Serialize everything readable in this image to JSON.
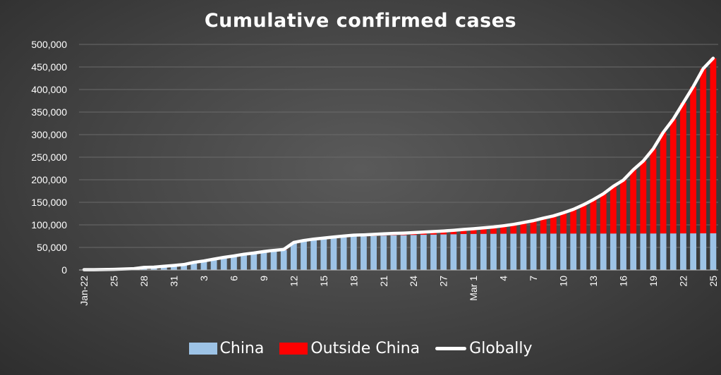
{
  "chart_data": {
    "type": "bar",
    "stacked": true,
    "title": "Cumulative confirmed cases",
    "xlabel": "",
    "ylabel": "",
    "ylim": [
      0,
      500000
    ],
    "y_ticks": [
      "0",
      "50,000",
      "100,000",
      "150,000",
      "200,000",
      "250,000",
      "300,000",
      "350,000",
      "400,000",
      "450,000",
      "500,000"
    ],
    "x_tick_labels": [
      "Jan-22",
      "25",
      "28",
      "31",
      "3",
      "6",
      "9",
      "12",
      "15",
      "18",
      "21",
      "24",
      "27",
      "Mar 1",
      "4",
      "7",
      "10",
      "13",
      "16",
      "19",
      "22",
      "25"
    ],
    "categories": [
      "Jan-22",
      "Jan-23",
      "Jan-24",
      "Jan-25",
      "Jan-26",
      "Jan-27",
      "Jan-28",
      "Jan-29",
      "Jan-30",
      "Jan-31",
      "Feb-1",
      "Feb-2",
      "Feb-3",
      "Feb-4",
      "Feb-5",
      "Feb-6",
      "Feb-7",
      "Feb-8",
      "Feb-9",
      "Feb-10",
      "Feb-11",
      "Feb-12",
      "Feb-13",
      "Feb-14",
      "Feb-15",
      "Feb-16",
      "Feb-17",
      "Feb-18",
      "Feb-19",
      "Feb-20",
      "Feb-21",
      "Feb-22",
      "Feb-23",
      "Feb-24",
      "Feb-25",
      "Feb-26",
      "Feb-27",
      "Feb-28",
      "Feb-29",
      "Mar-1",
      "Mar-2",
      "Mar-3",
      "Mar-4",
      "Mar-5",
      "Mar-6",
      "Mar-7",
      "Mar-8",
      "Mar-9",
      "Mar-10",
      "Mar-11",
      "Mar-12",
      "Mar-13",
      "Mar-14",
      "Mar-15",
      "Mar-16",
      "Mar-17",
      "Mar-18",
      "Mar-19",
      "Mar-20",
      "Mar-21",
      "Mar-22",
      "Mar-23",
      "Mar-24",
      "Mar-25"
    ],
    "series": [
      {
        "name": "China",
        "type": "bar",
        "color": "#9dc3e6",
        "values": [
          548,
          643,
          920,
          1406,
          2075,
          2877,
          5509,
          6087,
          8141,
          9802,
          11891,
          16630,
          19716,
          23707,
          27440,
          30587,
          34110,
          36814,
          39829,
          42354,
          44386,
          59804,
          63851,
          66492,
          68500,
          70548,
          72436,
          74185,
          74576,
          75465,
          76288,
          76936,
          77150,
          77658,
          78064,
          78497,
          78824,
          79251,
          79824,
          80026,
          80151,
          80270,
          80409,
          80552,
          80651,
          80695,
          80735,
          80754,
          80778,
          80793,
          80813,
          80824,
          80844,
          80860,
          80881,
          80894,
          80928,
          80967,
          81008,
          81054,
          81093,
          81171,
          81218,
          81285
        ]
      },
      {
        "name": "Outside China",
        "type": "bar",
        "color": "#ff0000",
        "values": [
          7,
          11,
          21,
          28,
          43,
          50,
          64,
          91,
          124,
          141,
          176,
          221,
          288,
          350,
          482,
          574,
          674,
          700,
          970,
          1058,
          1087,
          1130,
          1530,
          1900,
          2135,
          2414,
          2719,
          2956,
          3167,
          3455,
          3808,
          4125,
          4584,
          5187,
          5823,
          6615,
          7584,
          8665,
          9960,
          11400,
          13130,
          15110,
          17610,
          20530,
          24540,
          28670,
          34220,
          39140,
          45920,
          53520,
          63510,
          75140,
          88040,
          104650,
          118140,
          141240,
          160590,
          187550,
          223920,
          253220,
          289330,
          325100,
          365220,
          388050
        ]
      },
      {
        "name": "Globally",
        "type": "line",
        "color": "#ffffff"
      }
    ]
  }
}
